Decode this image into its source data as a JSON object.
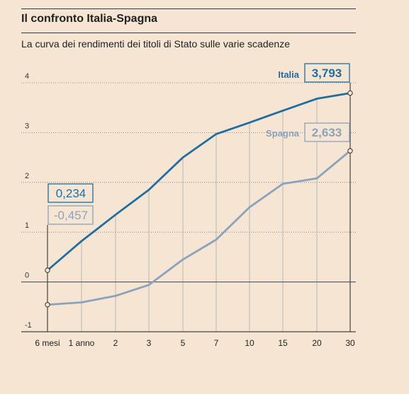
{
  "header": {
    "title": "Il confronto Italia-Spagna",
    "subtitle": "La curva dei rendimenti dei titoli di Stato sulle varie scadenze"
  },
  "chart_data": {
    "type": "line",
    "title": "Il confronto Italia-Spagna",
    "subtitle": "La curva dei rendimenti dei titoli di Stato sulle varie scadenze",
    "categories": [
      "6 mesi",
      "1 anno",
      "2",
      "3",
      "5",
      "7",
      "10",
      "15",
      "20",
      "30"
    ],
    "ylim": [
      -1,
      4
    ],
    "yticks": [
      "-1",
      "0",
      "1",
      "2",
      "3",
      "4"
    ],
    "grid": true,
    "series": [
      {
        "name": "Italia",
        "color": "#1f6ea3",
        "values": [
          0.234,
          0.82,
          1.35,
          1.85,
          2.5,
          2.97,
          3.2,
          3.44,
          3.68,
          3.793
        ],
        "start_label": "0,234",
        "end_label": "3,793"
      },
      {
        "name": "Spagna",
        "color": "#8aa3bc",
        "values": [
          -0.457,
          -0.41,
          -0.28,
          -0.06,
          0.45,
          0.85,
          1.5,
          1.97,
          2.08,
          2.633
        ],
        "start_label": "-0,457",
        "end_label": "2,633"
      }
    ]
  }
}
